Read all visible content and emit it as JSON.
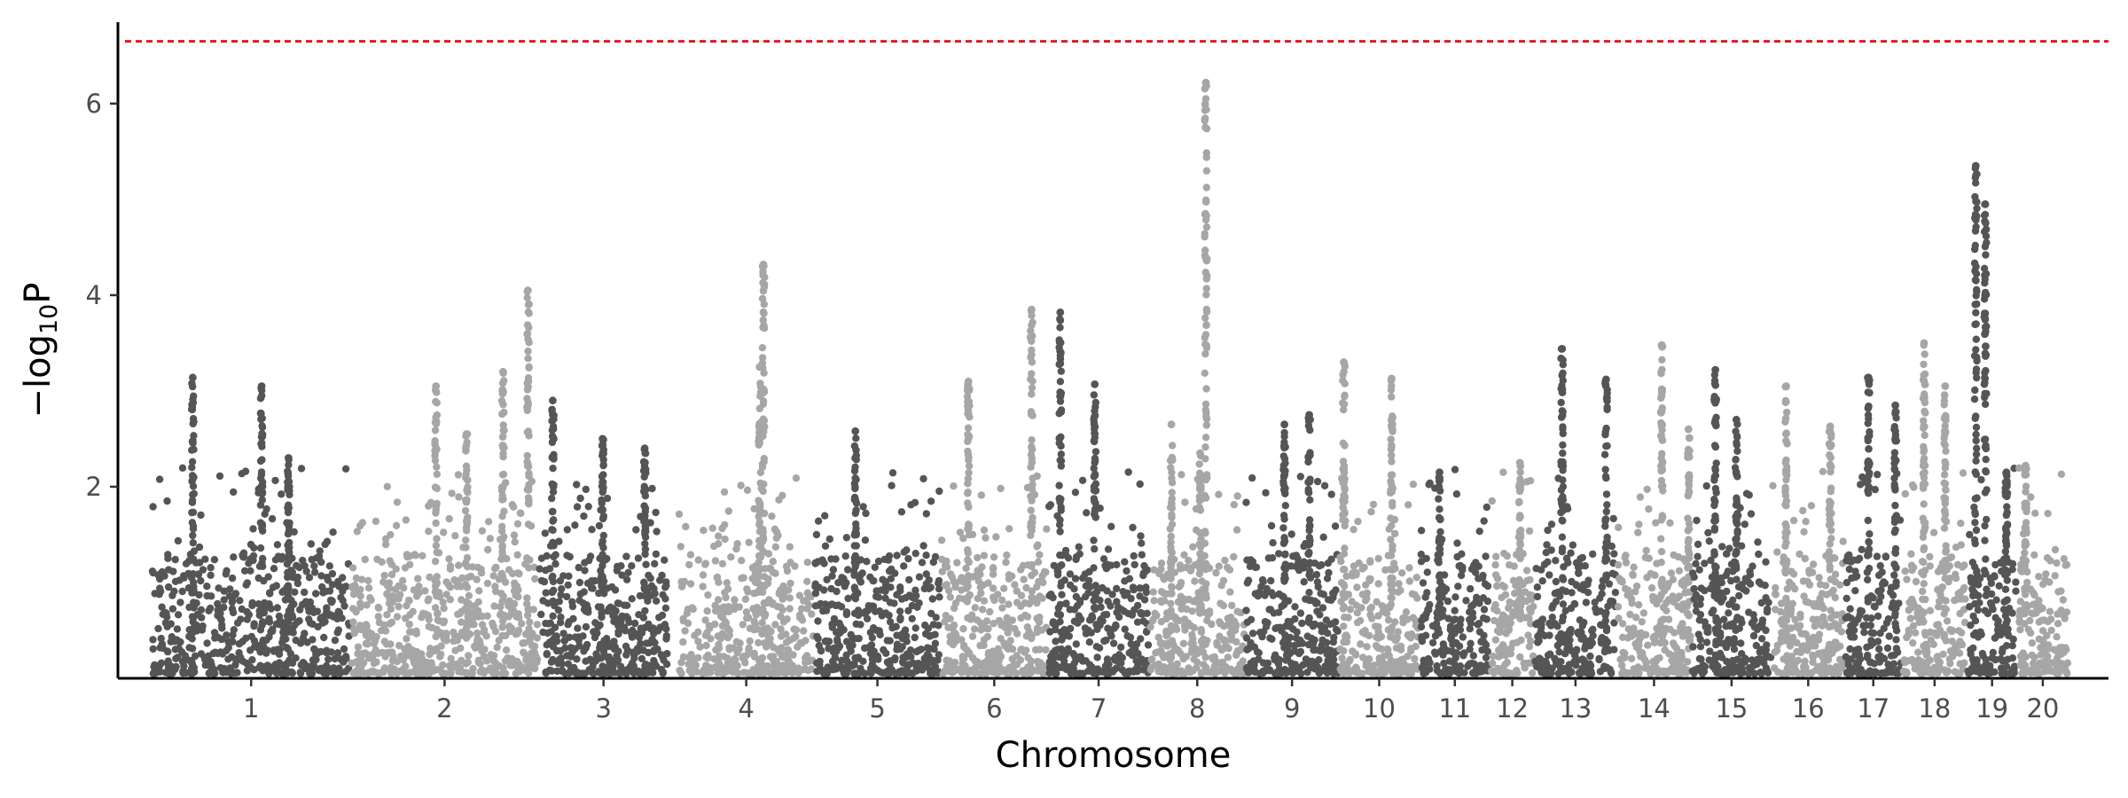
{
  "chart_data": {
    "type": "scatter",
    "xlabel": "Chromosome",
    "ylabel": {
      "prefix": "−log",
      "subscript": "10",
      "suffix": "P"
    },
    "ylim": [
      0,
      6.85
    ],
    "yticks": [
      2,
      4,
      6
    ],
    "grid": false,
    "legend": "none",
    "threshold": {
      "value": 6.65,
      "color": "#e8141c",
      "style": "dashed"
    },
    "colors": {
      "odd": "#555555",
      "even": "#a6a6a6"
    },
    "xlim": [
      0,
      1.01
    ],
    "chromosomes": [
      {
        "label": "1",
        "start": 0.0,
        "end": 0.103
      },
      {
        "label": "2",
        "start": 0.104,
        "end": 0.201
      },
      {
        "label": "3",
        "start": 0.202,
        "end": 0.269
      },
      {
        "label": "4",
        "start": 0.275,
        "end": 0.345
      },
      {
        "label": "5",
        "start": 0.346,
        "end": 0.411
      },
      {
        "label": "6",
        "start": 0.412,
        "end": 0.467
      },
      {
        "label": "7",
        "start": 0.468,
        "end": 0.52
      },
      {
        "label": "8",
        "start": 0.521,
        "end": 0.57
      },
      {
        "label": "9",
        "start": 0.571,
        "end": 0.619
      },
      {
        "label": "10",
        "start": 0.62,
        "end": 0.661
      },
      {
        "label": "11",
        "start": 0.662,
        "end": 0.698
      },
      {
        "label": "12",
        "start": 0.699,
        "end": 0.721
      },
      {
        "label": "13",
        "start": 0.722,
        "end": 0.764
      },
      {
        "label": "14",
        "start": 0.765,
        "end": 0.803
      },
      {
        "label": "15",
        "start": 0.804,
        "end": 0.845
      },
      {
        "label": "16",
        "start": 0.846,
        "end": 0.883
      },
      {
        "label": "17",
        "start": 0.884,
        "end": 0.913
      },
      {
        "label": "18",
        "start": 0.914,
        "end": 0.947
      },
      {
        "label": "19",
        "start": 0.948,
        "end": 0.973
      },
      {
        "label": "20",
        "start": 0.974,
        "end": 1.0
      }
    ],
    "peaks": [
      {
        "x": 0.021,
        "y": 3.14
      },
      {
        "x": 0.057,
        "y": 3.05
      },
      {
        "x": 0.071,
        "y": 2.3
      },
      {
        "x": 0.148,
        "y": 3.05
      },
      {
        "x": 0.164,
        "y": 2.55
      },
      {
        "x": 0.183,
        "y": 3.2
      },
      {
        "x": 0.196,
        "y": 4.05
      },
      {
        "x": 0.209,
        "y": 2.9
      },
      {
        "x": 0.235,
        "y": 2.5
      },
      {
        "x": 0.257,
        "y": 2.4
      },
      {
        "x": 0.319,
        "y": 4.32
      },
      {
        "x": 0.317,
        "y": 3.25
      },
      {
        "x": 0.367,
        "y": 2.58
      },
      {
        "x": 0.426,
        "y": 3.1
      },
      {
        "x": 0.459,
        "y": 3.85
      },
      {
        "x": 0.474,
        "y": 3.82
      },
      {
        "x": 0.492,
        "y": 3.07
      },
      {
        "x": 0.532,
        "y": 2.65
      },
      {
        "x": 0.55,
        "y": 6.22
      },
      {
        "x": 0.547,
        "y": 2.35
      },
      {
        "x": 0.591,
        "y": 2.65
      },
      {
        "x": 0.604,
        "y": 2.75
      },
      {
        "x": 0.622,
        "y": 3.3
      },
      {
        "x": 0.647,
        "y": 3.13
      },
      {
        "x": 0.672,
        "y": 2.15
      },
      {
        "x": 0.714,
        "y": 2.25
      },
      {
        "x": 0.736,
        "y": 3.44
      },
      {
        "x": 0.759,
        "y": 3.12
      },
      {
        "x": 0.788,
        "y": 3.48
      },
      {
        "x": 0.802,
        "y": 2.6
      },
      {
        "x": 0.816,
        "y": 3.22
      },
      {
        "x": 0.827,
        "y": 2.7
      },
      {
        "x": 0.853,
        "y": 3.05
      },
      {
        "x": 0.876,
        "y": 2.63
      },
      {
        "x": 0.896,
        "y": 3.14
      },
      {
        "x": 0.91,
        "y": 2.85
      },
      {
        "x": 0.925,
        "y": 3.5
      },
      {
        "x": 0.936,
        "y": 3.05
      },
      {
        "x": 0.952,
        "y": 5.35
      },
      {
        "x": 0.957,
        "y": 4.95
      },
      {
        "x": 0.968,
        "y": 2.15
      },
      {
        "x": 0.978,
        "y": 2.22
      }
    ]
  }
}
